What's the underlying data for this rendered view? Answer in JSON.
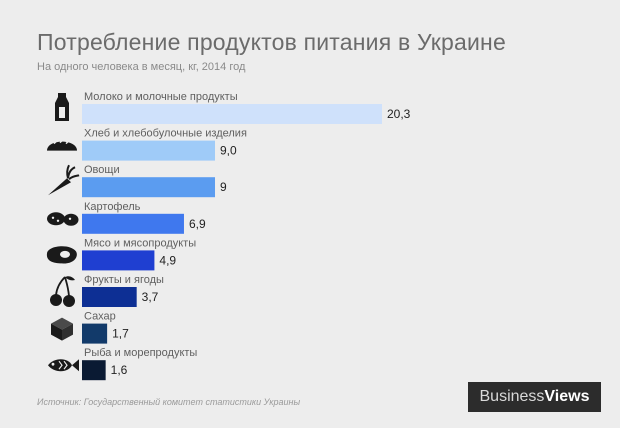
{
  "header": {
    "title": "Потребление продуктов питания в Украине",
    "subtitle": "На одного человека в месяц, кг,  2014 год"
  },
  "chart_data": {
    "type": "bar",
    "orientation": "horizontal",
    "categories": [
      "Молоко и молочные продукты",
      "Хлеб и хлебобулочные изделия",
      "Овощи",
      "Картофель",
      "Мясо и мясопродукты",
      "Фрукты и ягоды",
      "Сахар",
      "Рыба и морепродукты"
    ],
    "values": [
      20.3,
      9.0,
      9,
      6.9,
      4.9,
      3.7,
      1.7,
      1.6
    ],
    "value_labels": [
      "20,3",
      "9,0",
      "9",
      "6,9",
      "4,9",
      "3,7",
      "1,7",
      "1,6"
    ],
    "bar_colors": [
      "#cfe1fb",
      "#9fcbf8",
      "#5b9cf0",
      "#3f78ee",
      "#1f3fd1",
      "#0d2f94",
      "#123a6a",
      "#0a1a33"
    ],
    "icons": [
      "milk-carton-icon",
      "bread-icon",
      "carrot-icon",
      "potato-icon",
      "meat-icon",
      "cherry-icon",
      "sugar-cube-icon",
      "fish-icon"
    ],
    "xlim": [
      0,
      20.3
    ],
    "grid": false,
    "legend": "none"
  },
  "footer": {
    "source": "Источник:  Государственный комитет статистики Украины",
    "logo_business": "Business",
    "logo_views": "Views"
  }
}
